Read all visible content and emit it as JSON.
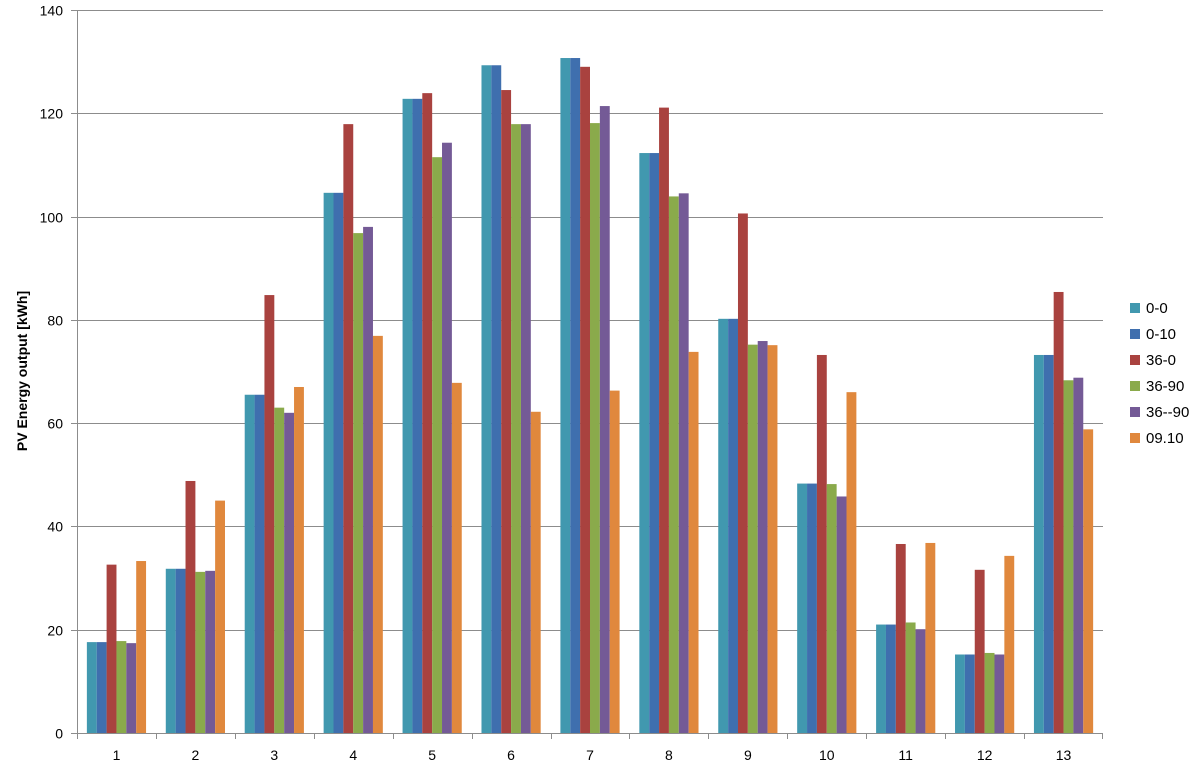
{
  "chart_data": {
    "type": "bar",
    "title": "",
    "xlabel": "",
    "ylabel": "PV Energy output [kWh]",
    "ylim": [
      0,
      140
    ],
    "yticks": [
      "0",
      "20",
      "40",
      "60",
      "80",
      "100",
      "120",
      "140"
    ],
    "grid": "horizontal",
    "legend_position": "right",
    "categories": [
      "1",
      "2",
      "3",
      "4",
      "5",
      "6",
      "7",
      "8",
      "9",
      "10",
      "11",
      "12",
      "13"
    ],
    "series": [
      {
        "name": "0-0",
        "color": "#4198AF",
        "values": [
          17.6,
          31.8,
          65.5,
          104.6,
          122.8,
          129.3,
          130.7,
          112.3,
          80.2,
          48.3,
          21.0,
          15.2,
          73.2
        ]
      },
      {
        "name": "0-10",
        "color": "#3F6FAE",
        "values": [
          17.6,
          31.8,
          65.5,
          104.6,
          122.8,
          129.3,
          130.7,
          112.3,
          80.2,
          48.3,
          21.0,
          15.2,
          73.2
        ]
      },
      {
        "name": "36-0",
        "color": "#A9423F",
        "values": [
          32.6,
          48.8,
          84.8,
          117.9,
          123.9,
          124.5,
          129.0,
          121.1,
          100.6,
          73.2,
          36.6,
          31.6,
          85.4
        ]
      },
      {
        "name": "36-90",
        "color": "#8AAA4B",
        "values": [
          17.8,
          31.2,
          63.0,
          96.8,
          111.5,
          117.9,
          118.1,
          103.9,
          75.2,
          48.2,
          21.4,
          15.5,
          68.3
        ]
      },
      {
        "name": "36--90",
        "color": "#745A96",
        "values": [
          17.4,
          31.4,
          62.0,
          98.0,
          114.3,
          117.9,
          121.4,
          104.5,
          75.9,
          45.8,
          20.1,
          15.2,
          68.8
        ]
      },
      {
        "name": "09.10",
        "color": "#E0883D",
        "values": [
          33.3,
          45.0,
          67.0,
          76.9,
          67.8,
          62.2,
          66.3,
          73.8,
          75.1,
          66.0,
          36.8,
          34.3,
          58.8
        ]
      }
    ]
  }
}
